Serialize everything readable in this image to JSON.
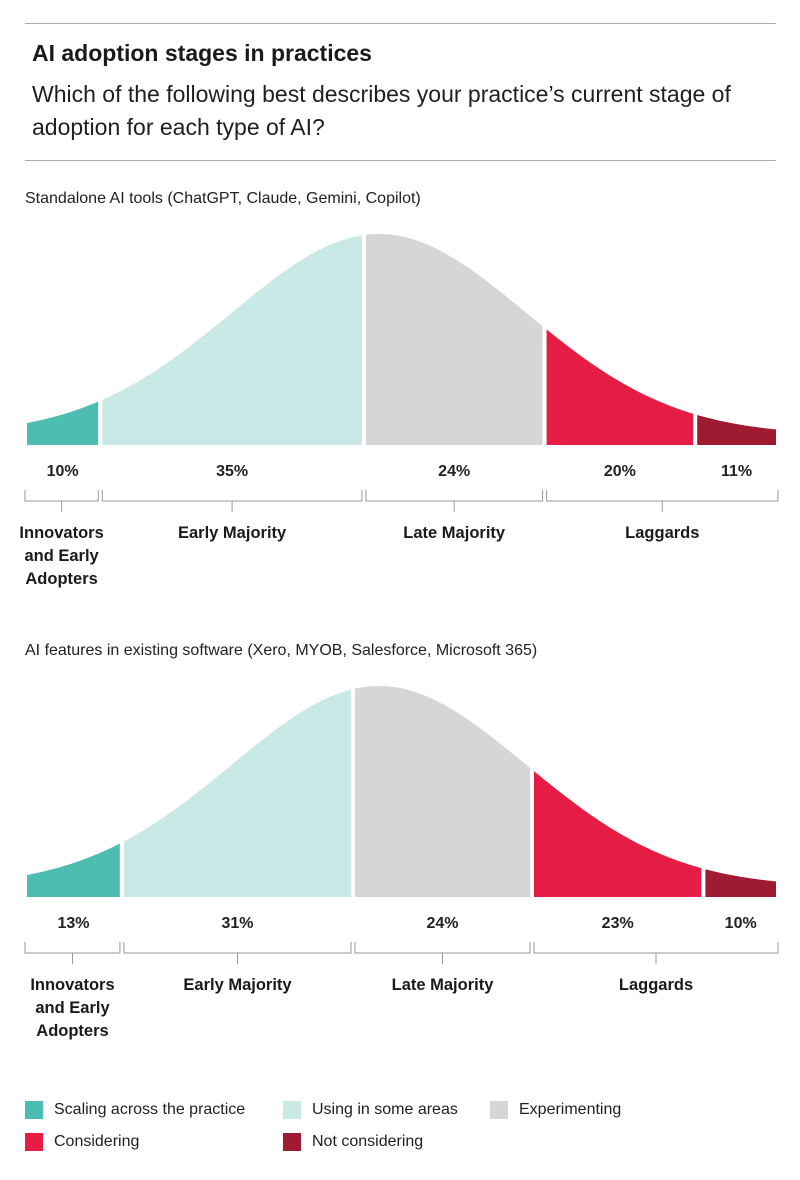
{
  "header": {
    "title": "AI adoption stages in practices",
    "question": "Which of the following best describes your practice’s current stage of adoption for each type of AI?"
  },
  "chart_data": [
    {
      "type": "area",
      "title": "Standalone AI tools (ChatGPT, Claude, Gemini, Copilot)",
      "unit": "%",
      "segments": [
        {
          "name": "Scaling across the practice",
          "value": 10
        },
        {
          "name": "Using in some areas",
          "value": 35
        },
        {
          "name": "Experimenting",
          "value": 24
        },
        {
          "name": "Considering",
          "value": 20
        },
        {
          "name": "Not considering",
          "value": 11
        }
      ],
      "value_labels": [
        "10%",
        "35%",
        "24%",
        "20%",
        "11%"
      ],
      "stage_groups": [
        {
          "label": "Innovators and Early Adopters",
          "lines": [
            "Innovators",
            "and Early",
            "Adopters"
          ],
          "segments": [
            0
          ]
        },
        {
          "label": "Early Majority",
          "lines": [
            "Early Majority"
          ],
          "segments": [
            1
          ]
        },
        {
          "label": "Late Majority",
          "lines": [
            "Late Majority"
          ],
          "segments": [
            2
          ]
        },
        {
          "label": "Laggards",
          "lines": [
            "Laggards"
          ],
          "segments": [
            3,
            4
          ]
        }
      ]
    },
    {
      "type": "area",
      "title": "AI features in existing software (Xero, MYOB, Salesforce, Microsoft 365)",
      "unit": "%",
      "segments": [
        {
          "name": "Scaling across the practice",
          "value": 13
        },
        {
          "name": "Using in some areas",
          "value": 31
        },
        {
          "name": "Experimenting",
          "value": 24
        },
        {
          "name": "Considering",
          "value": 23
        },
        {
          "name": "Not considering",
          "value": 10
        }
      ],
      "value_labels": [
        "13%",
        "31%",
        "24%",
        "23%",
        "10%"
      ],
      "stage_groups": [
        {
          "label": "Innovators and Early Adopters",
          "lines": [
            "Innovators",
            "and Early",
            "Adopters"
          ],
          "segments": [
            0
          ]
        },
        {
          "label": "Early Majority",
          "lines": [
            "Early Majority"
          ],
          "segments": [
            1
          ]
        },
        {
          "label": "Late Majority",
          "lines": [
            "Late Majority"
          ],
          "segments": [
            2
          ]
        },
        {
          "label": "Laggards",
          "lines": [
            "Laggards"
          ],
          "segments": [
            3,
            4
          ]
        }
      ]
    }
  ],
  "legend": [
    {
      "label": "Scaling across the practice",
      "color": "#4dbdb1"
    },
    {
      "label": "Using in some areas",
      "color": "#c8e9e5"
    },
    {
      "label": "Experimenting",
      "color": "#d6d6d6"
    },
    {
      "label": "Considering",
      "color": "#e51c43"
    },
    {
      "label": "Not considering",
      "color": "#9e1b31"
    }
  ]
}
